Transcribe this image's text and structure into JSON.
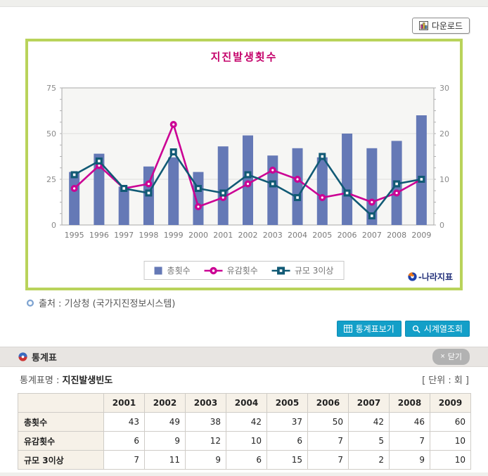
{
  "toolbar": {
    "download_label": "다운로드"
  },
  "chart": {
    "title": "지진발생횟수",
    "legend": [
      {
        "label": "총횟수",
        "marker": "bar",
        "color": "#6579b6"
      },
      {
        "label": "유감횟수",
        "marker": "circle",
        "color": "#cb0094"
      },
      {
        "label": "규모 3이상",
        "marker": "square",
        "color": "#115a75"
      }
    ],
    "logo_text": "-나라지표"
  },
  "chart_data": {
    "type": "bar",
    "title": "지진발생횟수",
    "categories": [
      "1995",
      "1996",
      "1997",
      "1998",
      "1999",
      "2000",
      "2001",
      "2002",
      "2003",
      "2004",
      "2005",
      "2006",
      "2007",
      "2008",
      "2009"
    ],
    "series": [
      {
        "name": "총횟수",
        "type": "bar",
        "axis": "left",
        "color": "#6579b6",
        "values": [
          29,
          39,
          21,
          32,
          37,
          29,
          43,
          49,
          38,
          42,
          37,
          50,
          42,
          46,
          60
        ]
      },
      {
        "name": "유감횟수",
        "type": "line",
        "marker": "circle",
        "axis": "right",
        "color": "#cb0094",
        "values": [
          8,
          13,
          8,
          9,
          22,
          4,
          6,
          9,
          12,
          10,
          6,
          7,
          5,
          7,
          10
        ]
      },
      {
        "name": "규모 3이상",
        "type": "line",
        "marker": "square",
        "axis": "right",
        "color": "#115a75",
        "values": [
          11,
          14,
          8,
          7,
          16,
          8,
          7,
          11,
          9,
          6,
          15,
          7,
          2,
          9,
          10
        ]
      }
    ],
    "left_axis": {
      "min": 0,
      "max": 75,
      "ticks": [
        0,
        25,
        50,
        75
      ]
    },
    "right_axis": {
      "min": 0,
      "max": 30,
      "ticks": [
        0,
        10,
        20,
        30
      ]
    },
    "grid": "horizontal",
    "legend_position": "bottom"
  },
  "source": {
    "text": "출처 : 기상청 (국가지진정보시스템)"
  },
  "actions": {
    "stats_table_label": "통계표보기",
    "timeseries_label": "시계열조회"
  },
  "stats_panel": {
    "title": "통계표",
    "close_symbol": "×",
    "close_label": "닫기",
    "table_name_label": "통계표명 :",
    "table_name": "지진발생빈도",
    "unit_label": "[ 단위 : 회 ]",
    "table": {
      "columns": [
        "2001",
        "2002",
        "2003",
        "2004",
        "2005",
        "2006",
        "2007",
        "2008",
        "2009"
      ],
      "rows": [
        {
          "label": "총횟수",
          "values": [
            43,
            49,
            38,
            42,
            37,
            50,
            42,
            46,
            60
          ]
        },
        {
          "label": "유감횟수",
          "values": [
            6,
            9,
            12,
            10,
            6,
            7,
            5,
            7,
            10
          ]
        },
        {
          "label": "규모 3이상",
          "values": [
            7,
            11,
            9,
            6,
            15,
            7,
            2,
            9,
            10
          ]
        }
      ]
    }
  }
}
